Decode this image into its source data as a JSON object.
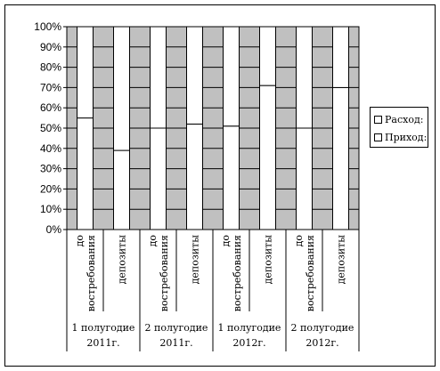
{
  "chart_data": {
    "type": "bar",
    "stacked": true,
    "normalized": true,
    "y_ticks": [
      "0%",
      "10%",
      "20%",
      "30%",
      "40%",
      "50%",
      "60%",
      "70%",
      "80%",
      "90%",
      "100%"
    ],
    "ylim": [
      0,
      100
    ],
    "grid": true,
    "background_color": "#c0c0c0",
    "bar_color": "#ffffff",
    "groups": [
      {
        "label_line1": "1 полугодие",
        "label_line2": "2011г.",
        "categories": [
          "до востребования",
          "депозиты"
        ]
      },
      {
        "label_line1": "2 полугодие",
        "label_line2": "2011г.",
        "categories": [
          "до востребования",
          "депозиты"
        ]
      },
      {
        "label_line1": "1 полугодие",
        "label_line2": "2012г.",
        "categories": [
          "до востребования",
          "депозиты"
        ]
      },
      {
        "label_line1": "2 полугодие",
        "label_line2": "2012г.",
        "categories": [
          "до востребования",
          "депозиты"
        ]
      }
    ],
    "category_lines": {
      "до востребования": [
        "до",
        "востребования"
      ],
      "депозиты": [
        "депозиты"
      ]
    },
    "series": [
      {
        "name": "Приход:",
        "values": [
          55,
          39,
          50,
          52,
          51,
          71,
          50,
          70
        ]
      },
      {
        "name": "Расход:",
        "values": [
          45,
          61,
          50,
          48,
          49,
          29,
          50,
          30
        ]
      }
    ],
    "legend_position": "right",
    "legend": [
      "Расход:",
      "Приход:"
    ]
  }
}
